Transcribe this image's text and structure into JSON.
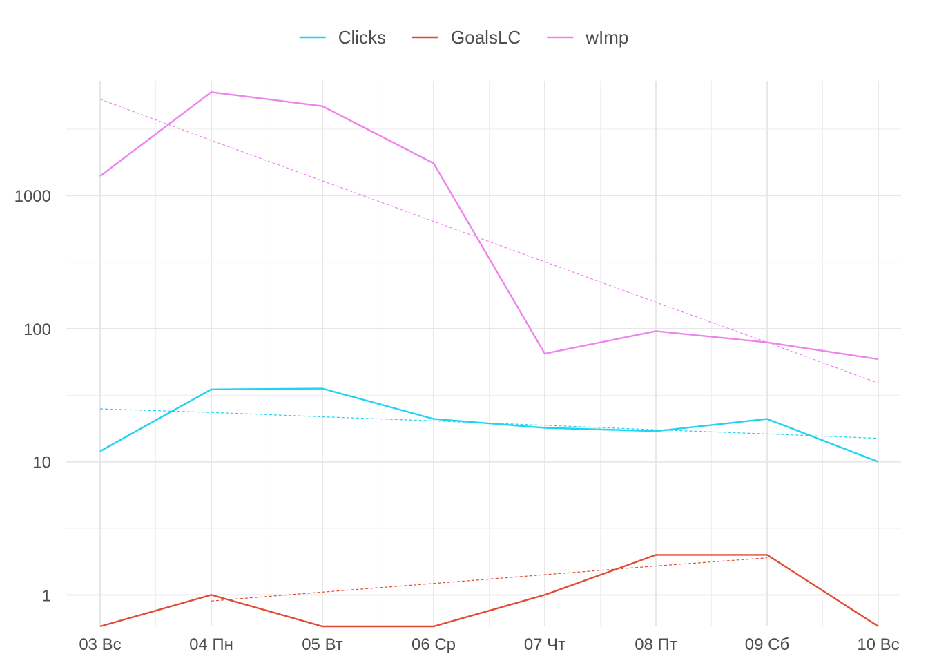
{
  "chart_data": {
    "type": "line",
    "title": "",
    "xlabel": "",
    "ylabel": "",
    "y_scale": "log10",
    "ylim": [
      0.58,
      7200
    ],
    "y_ticks": [
      "1",
      "10",
      "100",
      "1000"
    ],
    "y_tick_values": [
      1,
      10,
      100,
      1000
    ],
    "categories": [
      "03 Вс",
      "04 Пн",
      "05 Вт",
      "06 Ср",
      "07 Чт",
      "08 Пт",
      "09 Сб",
      "10 Вс"
    ],
    "legend": {
      "position": "top",
      "entries": [
        "Clicks",
        "GoalsLC",
        "wImp"
      ]
    },
    "grid": true,
    "series": [
      {
        "name": "Clicks",
        "color": "#1ed4f2",
        "values": [
          12,
          35,
          35.5,
          21,
          18,
          17,
          21,
          10
        ],
        "trend": [
          25,
          23.5,
          21.8,
          20.3,
          18.8,
          17.4,
          16.2,
          15
        ]
      },
      {
        "name": "GoalsLC",
        "color": "#e34a33",
        "values": [
          0.58,
          1,
          0.58,
          0.58,
          1,
          2,
          2,
          0.58
        ],
        "trend_categories": [
          "04 Пн",
          "05 Вт",
          "06 Ср",
          "07 Чт",
          "08 Пт",
          "09 Сб"
        ],
        "trend": [
          0.9,
          1.05,
          1.22,
          1.42,
          1.65,
          1.9
        ]
      },
      {
        "name": "wImp",
        "color": "#ee82ee",
        "values": [
          1400,
          6000,
          4700,
          1750,
          65,
          96,
          79,
          59
        ],
        "trend": [
          5300,
          2600,
          1290,
          640,
          318,
          158,
          79,
          39
        ]
      }
    ]
  }
}
